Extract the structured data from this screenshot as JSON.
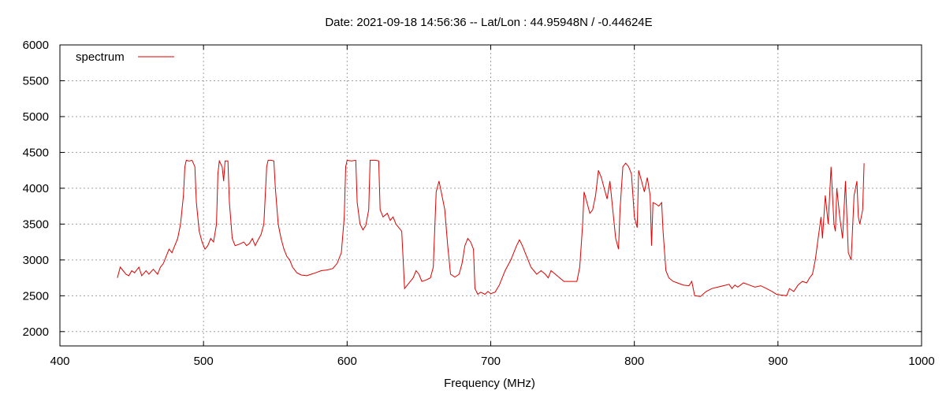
{
  "chart_data": {
    "type": "line",
    "title": "Date: 2021-09-18 14:56:36  --  Lat/Lon : 44.95948N / -0.44624E",
    "xlabel": "Frequency (MHz)",
    "ylabel": "",
    "xlim": [
      400,
      1000
    ],
    "ylim": [
      1800,
      6000
    ],
    "xticks": [
      400,
      500,
      600,
      700,
      800,
      900,
      1000
    ],
    "yticks": [
      2000,
      2500,
      3000,
      3500,
      4000,
      4500,
      5000,
      5500,
      6000
    ],
    "grid": true,
    "legend": {
      "position": "top-left",
      "entries": [
        "spectrum"
      ]
    },
    "series": [
      {
        "name": "spectrum",
        "color": "#e00000",
        "points": [
          [
            440,
            2750
          ],
          [
            442,
            2900
          ],
          [
            444,
            2850
          ],
          [
            446,
            2800
          ],
          [
            448,
            2780
          ],
          [
            450,
            2850
          ],
          [
            452,
            2820
          ],
          [
            455,
            2900
          ],
          [
            457,
            2780
          ],
          [
            460,
            2850
          ],
          [
            462,
            2800
          ],
          [
            465,
            2870
          ],
          [
            468,
            2800
          ],
          [
            470,
            2900
          ],
          [
            472,
            2950
          ],
          [
            474,
            3050
          ],
          [
            476,
            3150
          ],
          [
            478,
            3100
          ],
          [
            480,
            3200
          ],
          [
            482,
            3300
          ],
          [
            484,
            3500
          ],
          [
            486,
            3900
          ],
          [
            487,
            4300
          ],
          [
            488,
            4390
          ],
          [
            490,
            4380
          ],
          [
            492,
            4390
          ],
          [
            494,
            4300
          ],
          [
            495,
            3800
          ],
          [
            497,
            3400
          ],
          [
            499,
            3250
          ],
          [
            501,
            3150
          ],
          [
            503,
            3200
          ],
          [
            505,
            3300
          ],
          [
            507,
            3250
          ],
          [
            509,
            3500
          ],
          [
            510,
            4200
          ],
          [
            511,
            4380
          ],
          [
            513,
            4300
          ],
          [
            514,
            4100
          ],
          [
            515,
            4380
          ],
          [
            517,
            4380
          ],
          [
            518,
            3800
          ],
          [
            520,
            3300
          ],
          [
            522,
            3200
          ],
          [
            525,
            3220
          ],
          [
            528,
            3250
          ],
          [
            530,
            3200
          ],
          [
            532,
            3230
          ],
          [
            534,
            3300
          ],
          [
            536,
            3200
          ],
          [
            538,
            3280
          ],
          [
            540,
            3350
          ],
          [
            542,
            3500
          ],
          [
            544,
            4300
          ],
          [
            545,
            4390
          ],
          [
            547,
            4390
          ],
          [
            549,
            4380
          ],
          [
            550,
            4000
          ],
          [
            552,
            3500
          ],
          [
            554,
            3300
          ],
          [
            556,
            3150
          ],
          [
            558,
            3050
          ],
          [
            560,
            3000
          ],
          [
            562,
            2900
          ],
          [
            565,
            2820
          ],
          [
            568,
            2790
          ],
          [
            572,
            2780
          ],
          [
            575,
            2800
          ],
          [
            578,
            2820
          ],
          [
            582,
            2850
          ],
          [
            586,
            2860
          ],
          [
            590,
            2880
          ],
          [
            593,
            2950
          ],
          [
            596,
            3100
          ],
          [
            598,
            3600
          ],
          [
            599,
            4300
          ],
          [
            600,
            4390
          ],
          [
            603,
            4380
          ],
          [
            606,
            4390
          ],
          [
            607,
            3800
          ],
          [
            609,
            3500
          ],
          [
            611,
            3420
          ],
          [
            613,
            3480
          ],
          [
            615,
            3700
          ],
          [
            616,
            4390
          ],
          [
            618,
            4390
          ],
          [
            620,
            4390
          ],
          [
            622,
            4380
          ],
          [
            623,
            3700
          ],
          [
            625,
            3600
          ],
          [
            628,
            3650
          ],
          [
            630,
            3550
          ],
          [
            632,
            3600
          ],
          [
            634,
            3500
          ],
          [
            636,
            3450
          ],
          [
            638,
            3400
          ],
          [
            639,
            3000
          ],
          [
            640,
            2600
          ],
          [
            642,
            2650
          ],
          [
            644,
            2700
          ],
          [
            646,
            2750
          ],
          [
            648,
            2850
          ],
          [
            650,
            2800
          ],
          [
            652,
            2700
          ],
          [
            655,
            2720
          ],
          [
            658,
            2750
          ],
          [
            660,
            2900
          ],
          [
            662,
            3950
          ],
          [
            664,
            4100
          ],
          [
            666,
            3900
          ],
          [
            668,
            3700
          ],
          [
            670,
            3200
          ],
          [
            672,
            2800
          ],
          [
            675,
            2760
          ],
          [
            678,
            2800
          ],
          [
            680,
            2950
          ],
          [
            682,
            3200
          ],
          [
            684,
            3300
          ],
          [
            686,
            3250
          ],
          [
            688,
            3150
          ],
          [
            689,
            2600
          ],
          [
            691,
            2520
          ],
          [
            693,
            2550
          ],
          [
            696,
            2520
          ],
          [
            698,
            2560
          ],
          [
            700,
            2530
          ],
          [
            703,
            2550
          ],
          [
            706,
            2650
          ],
          [
            710,
            2850
          ],
          [
            714,
            3000
          ],
          [
            718,
            3200
          ],
          [
            720,
            3280
          ],
          [
            722,
            3200
          ],
          [
            724,
            3100
          ],
          [
            726,
            3000
          ],
          [
            728,
            2900
          ],
          [
            730,
            2850
          ],
          [
            732,
            2800
          ],
          [
            735,
            2850
          ],
          [
            738,
            2800
          ],
          [
            740,
            2750
          ],
          [
            742,
            2850
          ],
          [
            745,
            2800
          ],
          [
            748,
            2750
          ],
          [
            751,
            2700
          ],
          [
            754,
            2700
          ],
          [
            757,
            2700
          ],
          [
            760,
            2700
          ],
          [
            762,
            2900
          ],
          [
            764,
            3500
          ],
          [
            765,
            3950
          ],
          [
            767,
            3800
          ],
          [
            769,
            3650
          ],
          [
            771,
            3700
          ],
          [
            773,
            3900
          ],
          [
            775,
            4250
          ],
          [
            777,
            4150
          ],
          [
            779,
            4000
          ],
          [
            781,
            3850
          ],
          [
            783,
            4100
          ],
          [
            785,
            3700
          ],
          [
            787,
            3300
          ],
          [
            789,
            3150
          ],
          [
            790,
            3700
          ],
          [
            792,
            4300
          ],
          [
            794,
            4350
          ],
          [
            796,
            4300
          ],
          [
            798,
            4200
          ],
          [
            800,
            3600
          ],
          [
            802,
            3450
          ],
          [
            803,
            4250
          ],
          [
            805,
            4100
          ],
          [
            807,
            3950
          ],
          [
            809,
            4150
          ],
          [
            811,
            3900
          ],
          [
            812,
            3200
          ],
          [
            813,
            3800
          ],
          [
            815,
            3780
          ],
          [
            817,
            3750
          ],
          [
            819,
            3800
          ],
          [
            820,
            3400
          ],
          [
            822,
            2850
          ],
          [
            824,
            2750
          ],
          [
            827,
            2700
          ],
          [
            830,
            2680
          ],
          [
            834,
            2650
          ],
          [
            838,
            2640
          ],
          [
            840,
            2700
          ],
          [
            842,
            2500
          ],
          [
            846,
            2490
          ],
          [
            850,
            2560
          ],
          [
            854,
            2600
          ],
          [
            858,
            2620
          ],
          [
            862,
            2640
          ],
          [
            866,
            2660
          ],
          [
            868,
            2600
          ],
          [
            870,
            2650
          ],
          [
            872,
            2620
          ],
          [
            876,
            2680
          ],
          [
            880,
            2650
          ],
          [
            884,
            2620
          ],
          [
            888,
            2640
          ],
          [
            892,
            2600
          ],
          [
            896,
            2560
          ],
          [
            899,
            2520
          ],
          [
            902,
            2510
          ],
          [
            906,
            2500
          ],
          [
            908,
            2600
          ],
          [
            911,
            2560
          ],
          [
            914,
            2650
          ],
          [
            917,
            2700
          ],
          [
            920,
            2680
          ],
          [
            922,
            2750
          ],
          [
            924,
            2800
          ],
          [
            926,
            3000
          ],
          [
            928,
            3300
          ],
          [
            930,
            3600
          ],
          [
            931,
            3300
          ],
          [
            933,
            3900
          ],
          [
            935,
            3500
          ],
          [
            937,
            4300
          ],
          [
            939,
            3500
          ],
          [
            940,
            3400
          ],
          [
            941,
            4000
          ],
          [
            943,
            3600
          ],
          [
            945,
            3300
          ],
          [
            947,
            4100
          ],
          [
            949,
            3100
          ],
          [
            951,
            3000
          ],
          [
            953,
            3900
          ],
          [
            955,
            4100
          ],
          [
            956,
            3600
          ],
          [
            957,
            3500
          ],
          [
            959,
            3700
          ],
          [
            960,
            4350
          ]
        ]
      }
    ]
  }
}
